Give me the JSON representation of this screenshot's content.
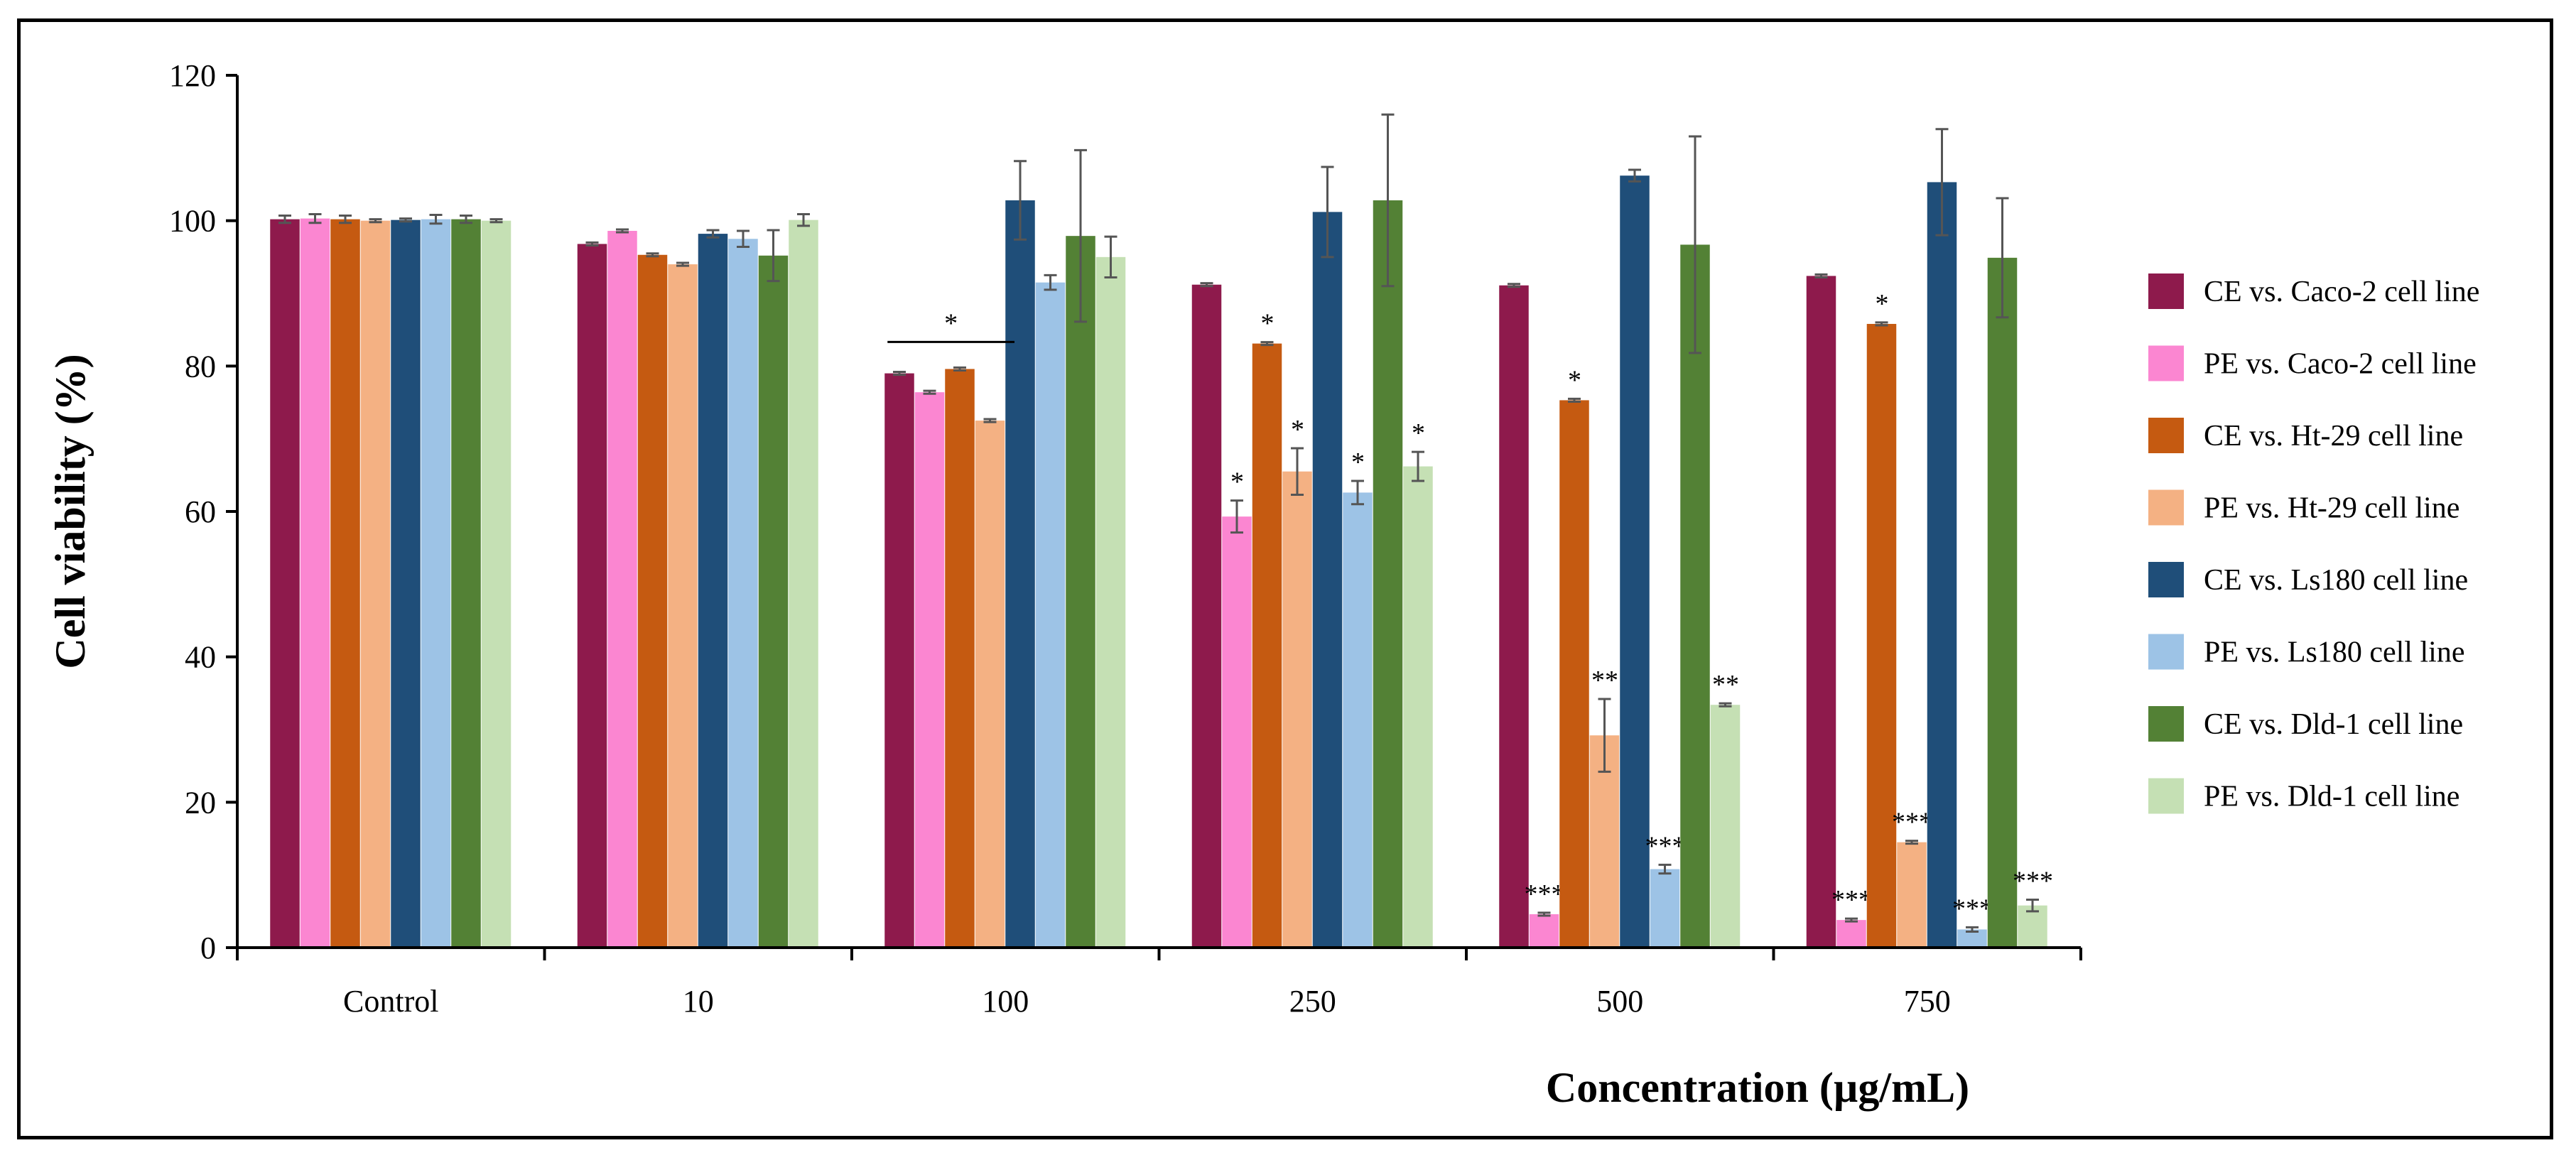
{
  "chart_data": {
    "type": "bar",
    "title": "",
    "xlabel": "Concentration (µg/mL)",
    "ylabel": "Cell viability (%)",
    "ylim": [
      0,
      120
    ],
    "yticks": [
      0,
      20,
      40,
      60,
      80,
      100,
      120
    ],
    "categories": [
      "Control",
      "10",
      "100",
      "250",
      "500",
      "750"
    ],
    "legend_position": "right",
    "series": [
      {
        "name": "CE vs. Caco-2 cell line",
        "color": "#8e1a4c",
        "values": [
          100.2,
          96.8,
          79.0,
          91.2,
          91.1,
          92.4
        ],
        "errors": [
          0.5,
          0.2,
          0.2,
          0.2,
          0.2,
          0.2
        ],
        "sig": [
          "",
          "",
          "",
          "",
          "",
          ""
        ]
      },
      {
        "name": "PE vs. Caco-2 cell line",
        "color": "#fb86d1",
        "values": [
          100.3,
          98.6,
          76.4,
          59.3,
          4.6,
          3.8
        ],
        "errors": [
          0.6,
          0.2,
          0.2,
          2.2,
          0.2,
          0.2
        ],
        "sig": [
          "",
          "",
          "",
          "*",
          "***",
          "***"
        ]
      },
      {
        "name": "CE vs. Ht-29 cell line",
        "color": "#c55a11",
        "values": [
          100.2,
          95.3,
          79.6,
          83.1,
          75.3,
          85.8
        ],
        "errors": [
          0.5,
          0.2,
          0.2,
          0.2,
          0.2,
          0.2
        ],
        "sig": [
          "",
          "",
          "",
          "*",
          "*",
          "*"
        ]
      },
      {
        "name": "PE vs. Ht-29 cell line",
        "color": "#f4b183",
        "values": [
          100.0,
          94.0,
          72.5,
          65.5,
          29.2,
          14.5
        ],
        "errors": [
          0.2,
          0.2,
          0.2,
          3.2,
          5.0,
          0.2
        ],
        "sig": [
          "",
          "",
          "",
          "*",
          "**",
          "***"
        ]
      },
      {
        "name": "CE vs. Ls180 cell line",
        "color": "#1f4e79",
        "values": [
          100.1,
          98.2,
          102.8,
          101.2,
          106.2,
          105.3
        ],
        "errors": [
          0.2,
          0.5,
          5.4,
          6.2,
          0.8,
          7.3
        ],
        "sig": [
          "",
          "",
          "",
          "",
          "",
          ""
        ]
      },
      {
        "name": "PE vs. Ls180 cell line",
        "color": "#9dc3e6",
        "values": [
          100.2,
          97.5,
          91.5,
          62.6,
          10.8,
          2.5
        ],
        "errors": [
          0.6,
          1.1,
          1.0,
          1.6,
          0.6,
          0.3
        ],
        "sig": [
          "",
          "",
          "",
          "*",
          "***",
          "***"
        ]
      },
      {
        "name": "CE vs. Dld-1 cell line",
        "color": "#538135",
        "values": [
          100.2,
          95.2,
          97.9,
          102.8,
          96.7,
          94.9
        ],
        "errors": [
          0.5,
          3.5,
          11.8,
          11.8,
          14.9,
          8.2
        ],
        "sig": [
          "",
          "",
          "",
          "",
          "",
          ""
        ]
      },
      {
        "name": "PE vs. Dld-1 cell line",
        "color": "#c5e0b4",
        "values": [
          100.0,
          100.1,
          95.0,
          66.2,
          33.4,
          5.8
        ],
        "errors": [
          0.2,
          0.8,
          2.8,
          2.0,
          0.2,
          0.8
        ],
        "sig": [
          "",
          "",
          "",
          "*",
          "**",
          "***"
        ]
      }
    ],
    "group_annotations": [
      {
        "category": "100",
        "from_series": 0,
        "to_series": 3,
        "label": "*"
      }
    ]
  }
}
